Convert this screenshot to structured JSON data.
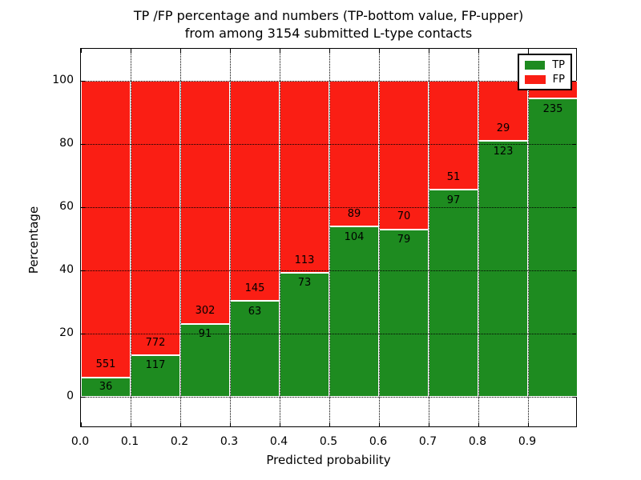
{
  "title": {
    "line1": "TP /FP percentage and numbers (TP-bottom value, FP-upper)",
    "line2": "from among 3154 submitted L-type contacts"
  },
  "axes": {
    "xlabel": "Predicted probability",
    "ylabel": "Percentage",
    "x_tick_labels": [
      "0.0",
      "0.1",
      "0.2",
      "0.3",
      "0.4",
      "0.5",
      "0.6",
      "0.7",
      "0.8",
      "0.9"
    ],
    "y_tick_labels": [
      "0",
      "20",
      "40",
      "60",
      "80",
      "100"
    ]
  },
  "colors": {
    "tp": "#1E8B20",
    "fp": "#FA1E14",
    "grid": "#000000",
    "background": "#ffffff"
  },
  "chart_data": {
    "type": "bar",
    "subtype": "stacked_percentage",
    "title": "TP /FP percentage and numbers (TP-bottom value, FP-upper) from among 3154 submitted L-type contacts",
    "xlabel": "Predicted probability",
    "ylabel": "Percentage",
    "total_submitted_contacts": 3154,
    "xlim": [
      0.0,
      1.0
    ],
    "ylim": [
      -10,
      110
    ],
    "grid": "dotted black, drawn above bars",
    "bar_edge_color": "#ffffff",
    "legend": {
      "position": "upper right",
      "entries": [
        {
          "label": "TP",
          "color": "#1E8B20"
        },
        {
          "label": "FP",
          "color": "#FA1E14"
        }
      ]
    },
    "bars": [
      {
        "bin": "0.0-0.1",
        "tp_count": 36,
        "fp_count": 551,
        "tp_pct": 6.13,
        "fp_pct": 93.87
      },
      {
        "bin": "0.1-0.2",
        "tp_count": 117,
        "fp_count": 772,
        "tp_pct": 13.16,
        "fp_pct": 86.84
      },
      {
        "bin": "0.2-0.3",
        "tp_count": 91,
        "fp_count": 302,
        "tp_pct": 23.16,
        "fp_pct": 76.84
      },
      {
        "bin": "0.3-0.4",
        "tp_count": 63,
        "fp_count": 145,
        "tp_pct": 30.29,
        "fp_pct": 69.71
      },
      {
        "bin": "0.4-0.5",
        "tp_count": 73,
        "fp_count": 113,
        "tp_pct": 39.25,
        "fp_pct": 60.75
      },
      {
        "bin": "0.5-0.6",
        "tp_count": 104,
        "fp_count": 89,
        "tp_pct": 53.89,
        "fp_pct": 46.11
      },
      {
        "bin": "0.6-0.7",
        "tp_count": 79,
        "fp_count": 70,
        "tp_pct": 53.02,
        "fp_pct": 46.98
      },
      {
        "bin": "0.7-0.8",
        "tp_count": 97,
        "fp_count": 51,
        "tp_pct": 65.54,
        "fp_pct": 34.46
      },
      {
        "bin": "0.8-0.9",
        "tp_count": 123,
        "fp_count": 29,
        "tp_pct": 80.92,
        "fp_pct": 19.08
      },
      {
        "bin": "0.9-1.0",
        "tp_count": 235,
        "fp_count": null,
        "fp_label_hidden_behind_legend": true,
        "tp_pct": 94.38,
        "fp_pct": 5.62
      }
    ]
  }
}
